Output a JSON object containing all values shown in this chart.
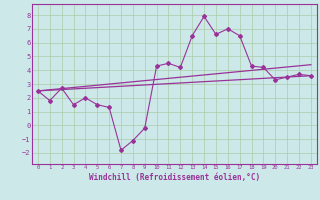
{
  "xlabel": "Windchill (Refroidissement éolien,°C)",
  "bg_color": "#cce8e8",
  "grid_color": "#aaccaa",
  "line_color": "#993399",
  "x_ticks": [
    0,
    1,
    2,
    3,
    4,
    5,
    6,
    7,
    8,
    9,
    10,
    11,
    12,
    13,
    14,
    15,
    16,
    17,
    18,
    19,
    20,
    21,
    22,
    23
  ],
  "y_ticks": [
    -2,
    -1,
    0,
    1,
    2,
    3,
    4,
    5,
    6,
    7,
    8
  ],
  "ylim": [
    -2.8,
    8.8
  ],
  "xlim": [
    -0.5,
    23.5
  ],
  "jagged_x": [
    0,
    1,
    2,
    3,
    4,
    5,
    6,
    7,
    8,
    9,
    10,
    11,
    12,
    13,
    14,
    15,
    16,
    17,
    18,
    19,
    20,
    21,
    22,
    23
  ],
  "jagged_y": [
    2.5,
    1.8,
    2.7,
    1.5,
    2.0,
    1.5,
    1.3,
    -1.8,
    -1.1,
    -0.2,
    4.3,
    4.5,
    4.2,
    6.5,
    7.9,
    6.6,
    7.0,
    6.5,
    4.3,
    4.2,
    3.3,
    3.5,
    3.7,
    3.6
  ],
  "line1_x": [
    0,
    23
  ],
  "line1_y": [
    2.5,
    3.6
  ],
  "line2_x": [
    0,
    23
  ],
  "line2_y": [
    2.5,
    4.4
  ]
}
